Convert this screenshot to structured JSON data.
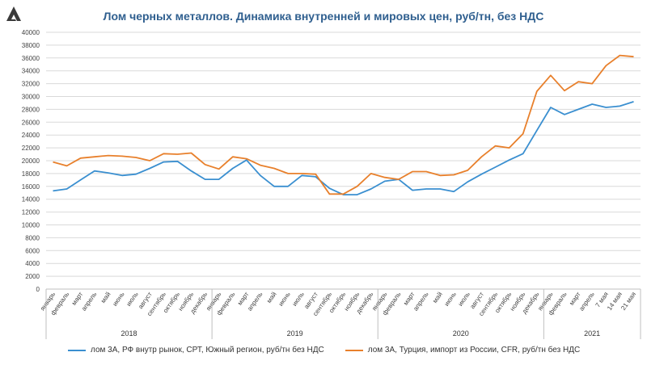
{
  "chart_data": {
    "type": "line",
    "title": "Лом черных металлов. Динамика внутренней и мировых цен, руб/тн, без НДС",
    "ylim": [
      0,
      40000
    ],
    "yticks": [
      0,
      2000,
      4000,
      6000,
      8000,
      10000,
      12000,
      14000,
      16000,
      18000,
      20000,
      22000,
      24000,
      26000,
      28000,
      30000,
      32000,
      34000,
      36000,
      38000,
      40000
    ],
    "grid": true,
    "legend_position": "bottom",
    "categories": [
      "январь",
      "февраль",
      "март",
      "апрель",
      "май",
      "июнь",
      "июль",
      "август",
      "сентябрь",
      "октябрь",
      "ноябрь",
      "декабрь",
      "январь",
      "февраль",
      "март",
      "апрель",
      "май",
      "июнь",
      "июль",
      "август",
      "сентябрь",
      "октябрь",
      "ноябрь",
      "декабрь",
      "январь",
      "февраль",
      "март",
      "апрель",
      "май",
      "июнь",
      "июль",
      "август",
      "сентябрь",
      "октябрь",
      "ноябрь",
      "декабрь",
      "январь",
      "февраль",
      "март",
      "апрель",
      "7 мая",
      "14 мая",
      "21 мая"
    ],
    "groups": [
      {
        "label": "2018",
        "count": 12
      },
      {
        "label": "2019",
        "count": 12
      },
      {
        "label": "2020",
        "count": 12
      },
      {
        "label": "2021",
        "count": 7
      }
    ],
    "series": [
      {
        "name": "лом 3А, РФ внутр рынок, СРТ, Южный регион, руб/тн без НДС",
        "color": "#3a8fd0",
        "values": [
          15300,
          15600,
          17000,
          18400,
          18100,
          17700,
          17900,
          18800,
          19800,
          19900,
          18400,
          17100,
          17100,
          18800,
          20100,
          17700,
          16000,
          16000,
          17700,
          17500,
          15700,
          14700,
          14700,
          15600,
          16800,
          17100,
          15400,
          15600,
          15600,
          15200,
          16700,
          17900,
          19000,
          20100,
          21100,
          24700,
          28300,
          27200,
          28000,
          28800,
          28300,
          28500,
          29200
        ]
      },
      {
        "name": "лом 3А, Турция, импорт из России, CFR, руб/тн без НДС",
        "color": "#e8802c",
        "values": [
          19800,
          19200,
          20400,
          20600,
          20800,
          20700,
          20500,
          20000,
          21100,
          21000,
          21200,
          19400,
          18700,
          20600,
          20300,
          19300,
          18800,
          18000,
          18000,
          17900,
          14800,
          14800,
          16000,
          18000,
          17400,
          17100,
          18300,
          18300,
          17700,
          17800,
          18500,
          20600,
          22300,
          22000,
          24200,
          30800,
          33300,
          30900,
          32300,
          32000,
          34800,
          36400,
          36200
        ]
      }
    ]
  }
}
